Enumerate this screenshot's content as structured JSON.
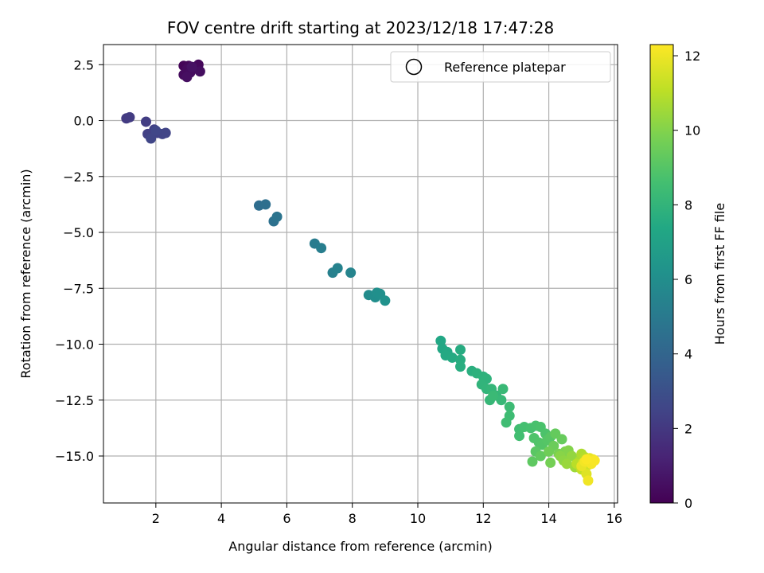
{
  "chart_data": {
    "type": "scatter",
    "title": "FOV centre drift starting at 2023/12/18 17:47:28",
    "xlabel": "Angular distance from reference (arcmin)",
    "ylabel": "Rotation from reference (arcmin)",
    "xlim": [
      0.4,
      16.1
    ],
    "ylim": [
      -17.1,
      3.4
    ],
    "xticks": [
      2,
      4,
      6,
      8,
      10,
      12,
      14,
      16
    ],
    "yticks": [
      2.5,
      0.0,
      -2.5,
      -5.0,
      -7.5,
      -10.0,
      -12.5,
      -15.0
    ],
    "xtick_labels": [
      "2",
      "4",
      "6",
      "8",
      "10",
      "12",
      "14",
      "16"
    ],
    "ytick_labels": [
      "2.5",
      "0.0",
      "−2.5",
      "−5.0",
      "−7.5",
      "−10.0",
      "−12.5",
      "−15.0"
    ],
    "grid": true,
    "legend": {
      "placement": "top-right",
      "entries": [
        "Reference platepar"
      ]
    },
    "colorbar": {
      "label": "Hours from first FF file",
      "colormap": "viridis",
      "range": [
        0,
        12.3
      ],
      "ticks": [
        0,
        2,
        4,
        6,
        8,
        10,
        12
      ],
      "tick_labels": [
        "0",
        "2",
        "4",
        "6",
        "8",
        "10",
        "12"
      ]
    },
    "points": [
      [
        2.85,
        2.45,
        0.1
      ],
      [
        3.0,
        2.45,
        0.2
      ],
      [
        3.3,
        2.5,
        0.25
      ],
      [
        2.95,
        2.3,
        0.3
      ],
      [
        2.85,
        2.05,
        0.35
      ],
      [
        3.05,
        2.15,
        0.4
      ],
      [
        3.35,
        2.2,
        0.45
      ],
      [
        2.95,
        1.95,
        0.5
      ],
      [
        3.1,
        2.4,
        0.55
      ],
      [
        1.1,
        0.1,
        2.1
      ],
      [
        1.2,
        0.15,
        2.15
      ],
      [
        1.7,
        -0.05,
        2.2
      ],
      [
        1.95,
        -0.4,
        2.3
      ],
      [
        1.75,
        -0.6,
        2.35
      ],
      [
        2.05,
        -0.55,
        2.4
      ],
      [
        2.2,
        -0.6,
        2.45
      ],
      [
        2.3,
        -0.55,
        2.5
      ],
      [
        1.85,
        -0.8,
        2.55
      ],
      [
        2.0,
        -0.45,
        2.6
      ],
      [
        5.15,
        -3.8,
        4.4
      ],
      [
        5.35,
        -3.75,
        4.5
      ],
      [
        5.6,
        -4.5,
        4.6
      ],
      [
        5.7,
        -4.3,
        4.7
      ],
      [
        6.85,
        -5.5,
        5.1
      ],
      [
        7.05,
        -5.7,
        5.2
      ],
      [
        7.4,
        -6.8,
        5.3
      ],
      [
        7.55,
        -6.6,
        5.4
      ],
      [
        7.95,
        -6.8,
        5.5
      ],
      [
        8.5,
        -7.8,
        5.9
      ],
      [
        8.7,
        -7.9,
        6.0
      ],
      [
        8.75,
        -7.7,
        6.05
      ],
      [
        8.85,
        -7.75,
        6.1
      ],
      [
        9.0,
        -8.05,
        6.2
      ],
      [
        10.7,
        -9.85,
        7.3
      ],
      [
        10.75,
        -10.2,
        7.35
      ],
      [
        10.9,
        -10.35,
        7.4
      ],
      [
        10.85,
        -10.5,
        7.45
      ],
      [
        11.05,
        -10.6,
        7.5
      ],
      [
        11.3,
        -10.25,
        7.55
      ],
      [
        11.3,
        -10.7,
        7.6
      ],
      [
        11.3,
        -11.0,
        7.65
      ],
      [
        11.65,
        -11.2,
        7.7
      ],
      [
        11.8,
        -11.3,
        7.8
      ],
      [
        12.0,
        -11.45,
        7.85
      ],
      [
        12.1,
        -11.55,
        7.9
      ],
      [
        11.95,
        -11.8,
        7.95
      ],
      [
        12.1,
        -12.0,
        8.0
      ],
      [
        12.25,
        -12.0,
        8.05
      ],
      [
        12.4,
        -12.3,
        8.1
      ],
      [
        12.2,
        -12.5,
        8.15
      ],
      [
        12.55,
        -12.5,
        8.2
      ],
      [
        12.6,
        -12.0,
        8.25
      ],
      [
        12.3,
        -12.3,
        8.3
      ],
      [
        12.8,
        -12.8,
        8.35
      ],
      [
        12.8,
        -13.2,
        8.4
      ],
      [
        12.7,
        -13.5,
        8.45
      ],
      [
        13.1,
        -13.8,
        8.5
      ],
      [
        13.1,
        -14.1,
        8.55
      ],
      [
        13.25,
        -13.7,
        8.6
      ],
      [
        13.45,
        -13.75,
        8.65
      ],
      [
        13.6,
        -13.65,
        8.7
      ],
      [
        13.75,
        -13.7,
        8.75
      ],
      [
        13.9,
        -14.0,
        8.8
      ],
      [
        13.55,
        -14.2,
        8.85
      ],
      [
        13.7,
        -14.4,
        8.9
      ],
      [
        13.8,
        -14.5,
        8.95
      ],
      [
        13.95,
        -14.3,
        9.0
      ],
      [
        14.05,
        -14.15,
        9.05
      ],
      [
        13.6,
        -14.8,
        9.1
      ],
      [
        13.5,
        -15.25,
        9.2
      ],
      [
        13.75,
        -15.0,
        9.3
      ],
      [
        14.2,
        -14.0,
        9.35
      ],
      [
        14.4,
        -14.25,
        9.4
      ],
      [
        14.15,
        -14.55,
        9.5
      ],
      [
        14.0,
        -14.8,
        9.6
      ],
      [
        14.05,
        -15.3,
        9.7
      ],
      [
        14.3,
        -14.9,
        9.8
      ],
      [
        14.5,
        -14.8,
        9.9
      ],
      [
        14.6,
        -14.75,
        10.0
      ],
      [
        14.35,
        -15.0,
        10.1
      ],
      [
        14.45,
        -15.2,
        10.2
      ],
      [
        14.7,
        -15.0,
        10.3
      ],
      [
        14.55,
        -15.35,
        10.4
      ],
      [
        14.8,
        -15.5,
        10.5
      ],
      [
        14.95,
        -15.2,
        10.7
      ],
      [
        15.0,
        -14.9,
        10.8
      ],
      [
        15.1,
        -15.05,
        10.9
      ],
      [
        14.85,
        -15.35,
        11.0
      ],
      [
        15.0,
        -15.6,
        11.2
      ],
      [
        15.2,
        -15.4,
        11.4
      ],
      [
        15.05,
        -15.3,
        11.5
      ],
      [
        15.3,
        -15.2,
        11.6
      ],
      [
        15.15,
        -15.8,
        11.7
      ],
      [
        15.25,
        -15.1,
        11.8
      ],
      [
        15.0,
        -15.45,
        11.9
      ],
      [
        15.35,
        -15.15,
        12.0
      ],
      [
        15.2,
        -16.1,
        12.05
      ],
      [
        15.1,
        -15.25,
        12.1
      ],
      [
        15.3,
        -15.35,
        12.15
      ],
      [
        15.4,
        -15.2,
        12.2
      ],
      [
        15.15,
        -15.15,
        12.25
      ]
    ]
  }
}
